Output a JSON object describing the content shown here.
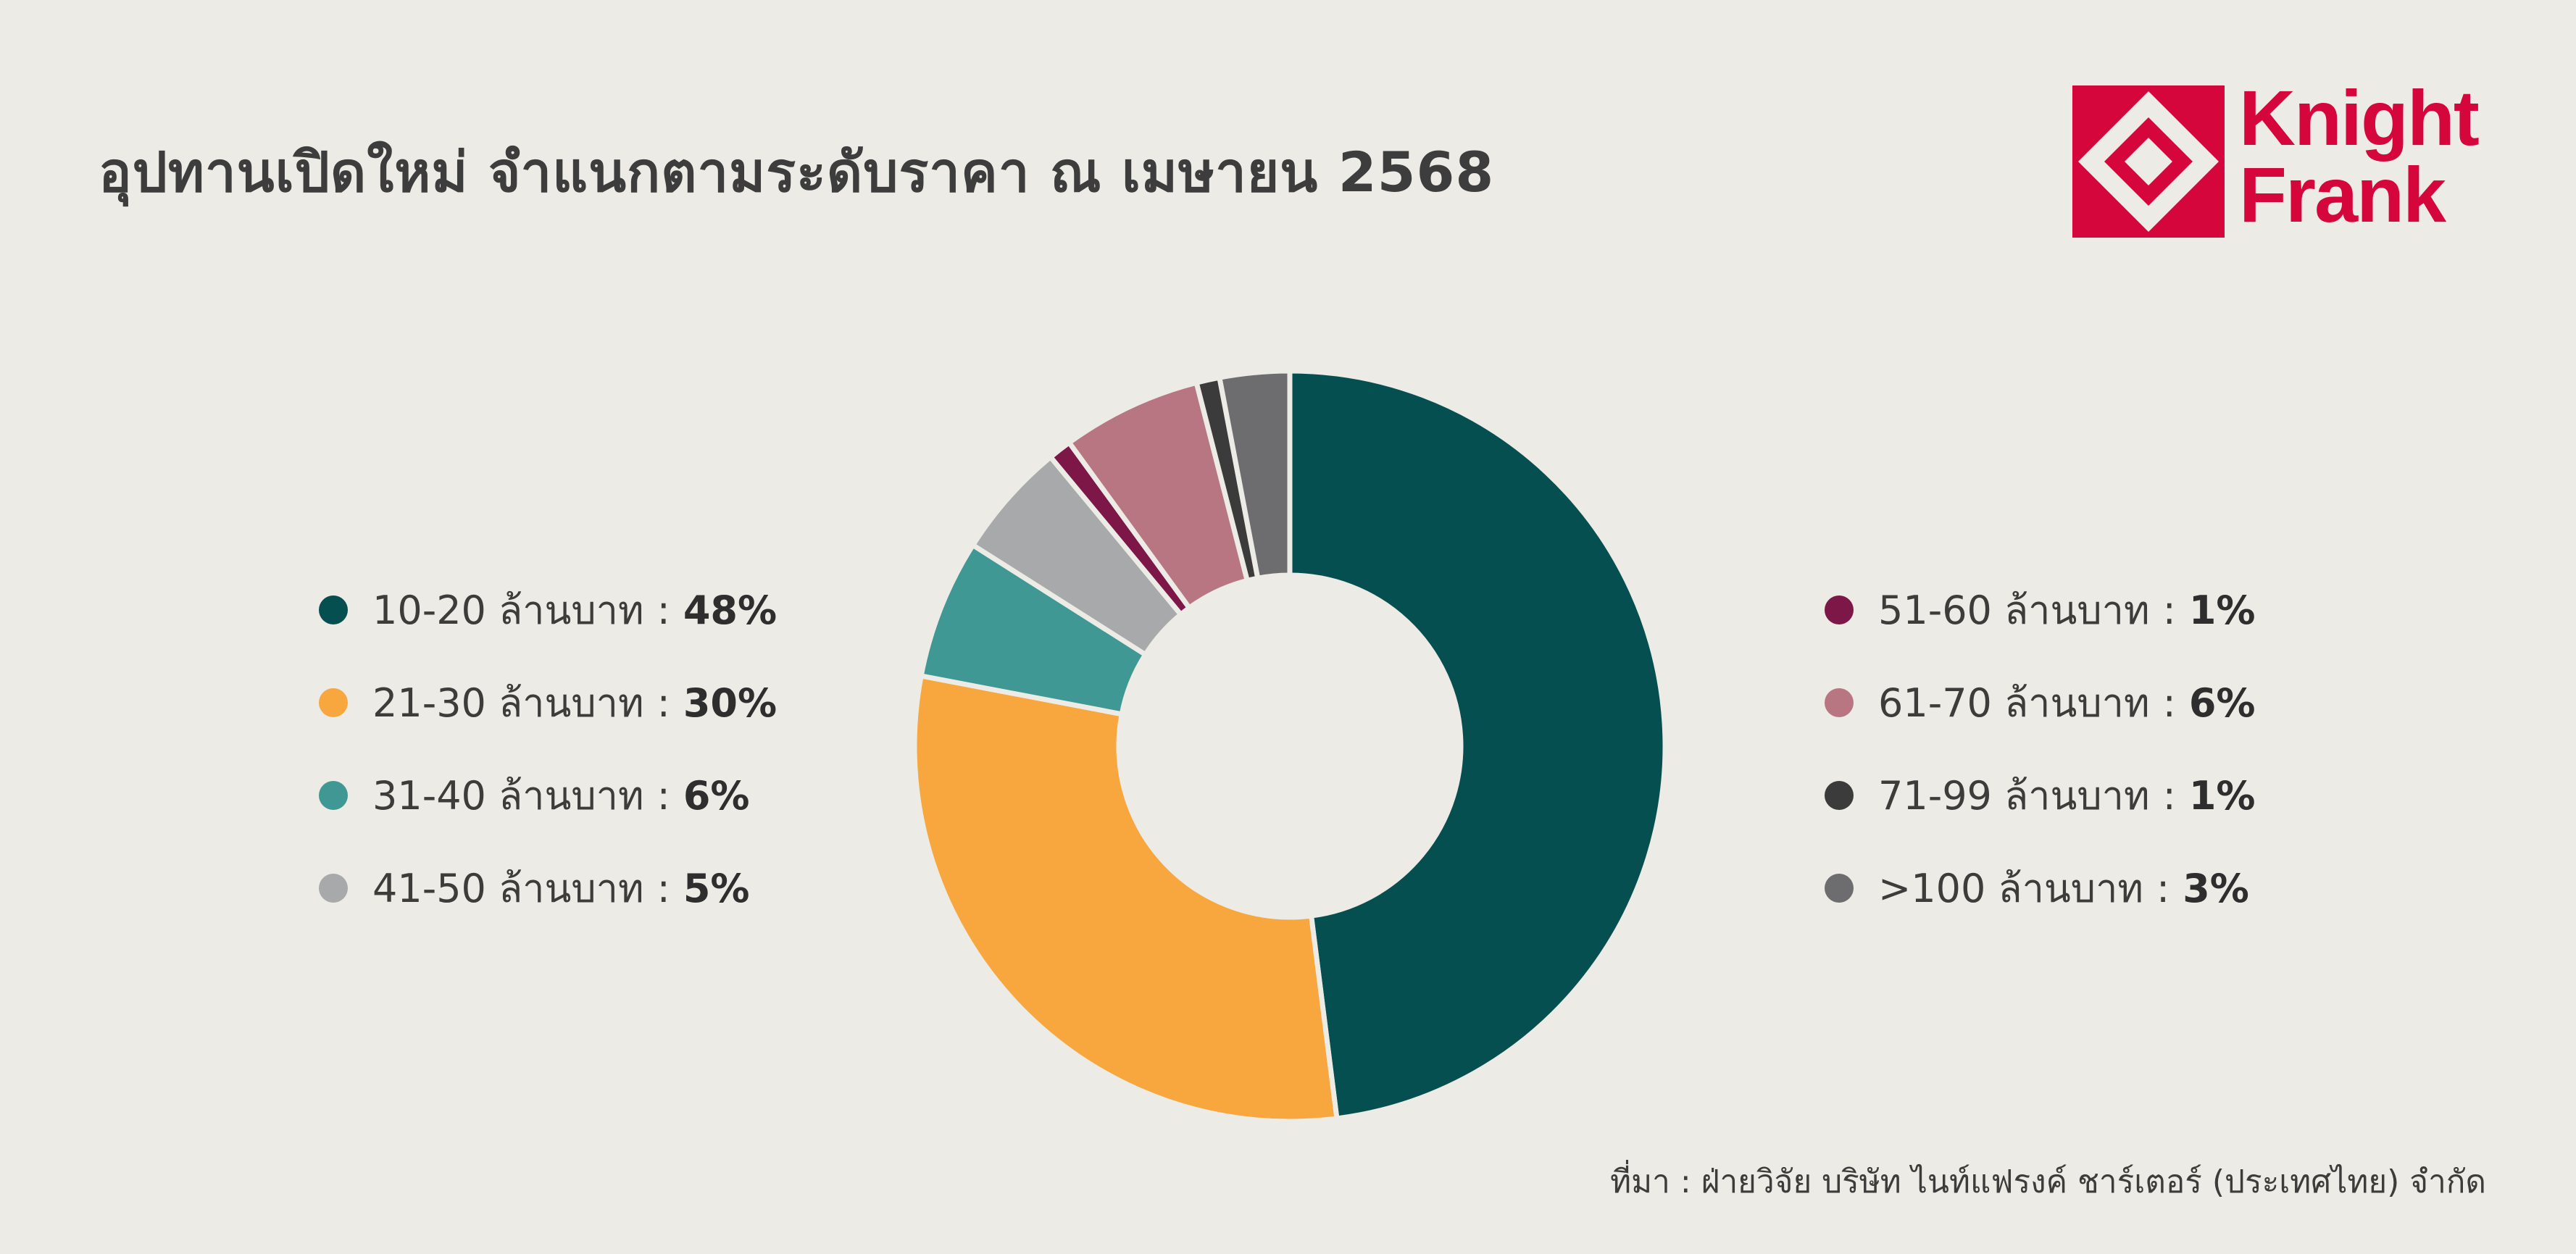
{
  "title": "อุปทานเปิดใหม่ จำแนกตามระดับราคา ณ เมษายน 2568",
  "logo": {
    "line1": "Knight",
    "line2": "Frank",
    "color": "#d4063c"
  },
  "source": "ที่มา : ฝ่ายวิจัย บริษัท ไนท์แฟรงค์ ชาร์เตอร์ (ประเทศไทย) จำกัด",
  "legend_separator": ":",
  "chart_data": {
    "type": "pie",
    "donut": true,
    "start_angle_deg": 0,
    "direction": "clockwise",
    "legend_placement": "split-left-right",
    "slices": [
      {
        "label": "10-20 ล้านบาท",
        "value": 48,
        "value_label": "48%",
        "color": "#064f51"
      },
      {
        "label": "21-30 ล้านบาท",
        "value": 30,
        "value_label": "30%",
        "color": "#f7a73d"
      },
      {
        "label": "31-40 ล้านบาท",
        "value": 6,
        "value_label": "6%",
        "color": "#3f9893"
      },
      {
        "label": "41-50 ล้านบาท",
        "value": 5,
        "value_label": "5%",
        "color": "#a8a9ab"
      },
      {
        "label": "51-60 ล้านบาท",
        "value": 1,
        "value_label": "1%",
        "color": "#7d1747"
      },
      {
        "label": "61-70 ล้านบาท",
        "value": 6,
        "value_label": "6%",
        "color": "#b87682"
      },
      {
        "label": "71-99 ล้านบาท",
        "value": 1,
        "value_label": "1%",
        "color": "#3b3b3b"
      },
      {
        "label": ">100 ล้านบาท",
        "value": 3,
        "value_label": "3%",
        "color": "#6d6d6f"
      }
    ]
  }
}
